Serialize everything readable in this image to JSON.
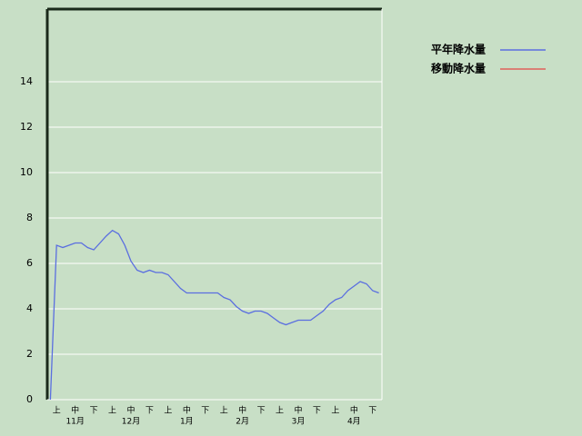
{
  "chart_data": {
    "type": "line",
    "categories": [
      null,
      "上",
      null,
      null,
      "中",
      null,
      null,
      "下",
      null,
      null,
      "上",
      null,
      null,
      "中",
      null,
      null,
      "下",
      null,
      null,
      "上",
      null,
      null,
      "中",
      null,
      null,
      "下",
      null,
      null,
      "上",
      null,
      null,
      "中",
      null,
      null,
      "下",
      null,
      null,
      "上",
      null,
      null,
      "中",
      null,
      null,
      "下",
      null,
      null,
      "上",
      null,
      null,
      "中",
      null,
      null,
      "下",
      null
    ],
    "months": [
      "11月",
      "12月",
      "1月",
      "2月",
      "3月",
      "4月"
    ],
    "series": [
      {
        "name": "平年降水量",
        "color": "#5a6ee0",
        "values": [
          0,
          6.8,
          6.7,
          6.8,
          6.9,
          6.9,
          6.7,
          6.6,
          6.9,
          7.2,
          7.45,
          7.3,
          6.8,
          6.1,
          5.7,
          5.6,
          5.7,
          5.6,
          5.6,
          5.5,
          5.2,
          4.9,
          4.7,
          4.7,
          4.7,
          4.7,
          4.7,
          4.7,
          4.5,
          4.4,
          4.1,
          3.9,
          3.8,
          3.9,
          3.9,
          3.8,
          3.6,
          3.4,
          3.3,
          3.4,
          3.5,
          3.5,
          3.5,
          3.7,
          3.9,
          4.2,
          4.4,
          4.5,
          4.8,
          5.0,
          5.2,
          5.1,
          4.8,
          4.7
        ]
      },
      {
        "name": "移動降水量",
        "color": "#e0605a",
        "values": [
          null,
          null,
          null,
          null,
          null,
          null,
          null,
          null,
          null,
          null,
          null,
          null,
          null,
          null,
          null,
          null,
          null,
          null,
          null,
          null,
          null,
          null,
          null,
          null,
          null,
          null,
          null,
          null,
          null,
          null,
          null,
          null,
          null,
          null,
          null,
          null,
          null,
          null,
          null,
          null,
          null,
          null,
          null,
          null,
          null,
          null,
          null,
          null,
          null,
          null,
          null,
          null,
          null,
          null
        ]
      }
    ],
    "ylim": [
      0,
      17.2
    ],
    "yticks": [
      0,
      2,
      4,
      6,
      8,
      10,
      12,
      14
    ],
    "grid": true
  }
}
